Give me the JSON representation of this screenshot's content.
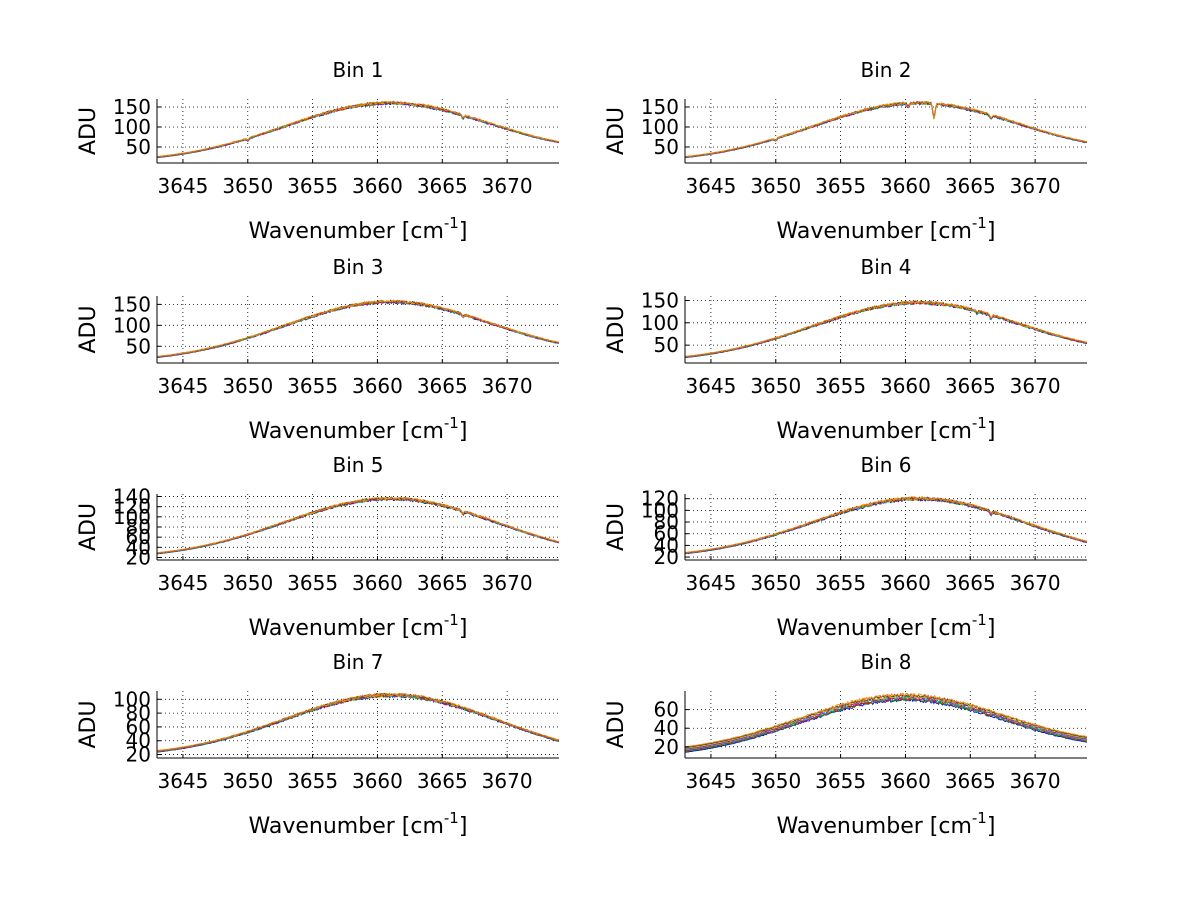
{
  "figure": {
    "background": "#ffffff"
  },
  "chart_data": [
    {
      "type": "line",
      "title": "Bin 1",
      "xlabel": "Wavenumber [cm",
      "xlabel_sup": "-1",
      "xlabel_end": "]",
      "ylabel": "ADU",
      "xlim": [
        3643,
        3674
      ],
      "ylim": [
        10,
        170
      ],
      "xticks": [
        3645,
        3650,
        3655,
        3660,
        3665,
        3670
      ],
      "yticks": [
        50,
        100,
        150
      ],
      "grid": true,
      "peak": 160,
      "start": 12,
      "end": 62,
      "center": 3661,
      "width": 11.5,
      "noise": 3,
      "spread": 1.5,
      "dips": [
        [
          3666.6,
          8
        ],
        [
          3650,
          5
        ]
      ]
    },
    {
      "type": "line",
      "title": "Bin 2",
      "xlabel": "Wavenumber [cm",
      "xlabel_sup": "-1",
      "xlabel_end": "]",
      "ylabel": "ADU",
      "xlim": [
        3643,
        3674
      ],
      "ylim": [
        10,
        170
      ],
      "xticks": [
        3645,
        3650,
        3655,
        3660,
        3665,
        3670
      ],
      "yticks": [
        50,
        100,
        150
      ],
      "grid": true,
      "peak": 160,
      "start": 12,
      "end": 62,
      "center": 3661,
      "width": 11.5,
      "noise": 3,
      "spread": 1.5,
      "dips": [
        [
          3662.2,
          35
        ],
        [
          3660.2,
          10
        ],
        [
          3666.6,
          8
        ],
        [
          3650,
          5
        ]
      ]
    },
    {
      "type": "line",
      "title": "Bin 3",
      "xlabel": "Wavenumber [cm",
      "xlabel_sup": "-1",
      "xlabel_end": "]",
      "ylabel": "ADU",
      "xlim": [
        3643,
        3674
      ],
      "ylim": [
        10,
        170
      ],
      "xticks": [
        3645,
        3650,
        3655,
        3660,
        3665,
        3670
      ],
      "yticks": [
        50,
        100,
        150
      ],
      "grid": true,
      "peak": 156,
      "start": 12,
      "end": 58,
      "center": 3661,
      "width": 11.5,
      "noise": 3,
      "spread": 1.5,
      "dips": [
        [
          3666.6,
          6
        ]
      ]
    },
    {
      "type": "line",
      "title": "Bin 4",
      "xlabel": "Wavenumber [cm",
      "xlabel_sup": "-1",
      "xlabel_end": "]",
      "ylabel": "ADU",
      "xlim": [
        3643,
        3674
      ],
      "ylim": [
        10,
        160
      ],
      "xticks": [
        3645,
        3650,
        3655,
        3660,
        3665,
        3670
      ],
      "yticks": [
        50,
        100,
        150
      ],
      "grid": true,
      "peak": 145,
      "start": 12,
      "end": 55,
      "center": 3661,
      "width": 11.5,
      "noise": 3,
      "spread": 1.5,
      "dips": [
        [
          3666.6,
          8
        ],
        [
          3665.5,
          4
        ]
      ]
    },
    {
      "type": "line",
      "title": "Bin 5",
      "xlabel": "Wavenumber [cm",
      "xlabel_sup": "-1",
      "xlabel_end": "]",
      "ylabel": "ADU",
      "xlim": [
        3643,
        3674
      ],
      "ylim": [
        15,
        145
      ],
      "xticks": [
        3645,
        3650,
        3655,
        3660,
        3665,
        3670
      ],
      "yticks": [
        20,
        40,
        60,
        80,
        100,
        120,
        140
      ],
      "yticklabels": [
        "20",
        "40",
        "60",
        "80",
        "100",
        "120",
        "140"
      ],
      "grid": true,
      "peak": 136,
      "start": 18,
      "end": 50,
      "center": 3661,
      "width": 11.5,
      "noise": 2.5,
      "spread": 1.2,
      "dips": [
        [
          3666.6,
          5
        ]
      ]
    },
    {
      "type": "line",
      "title": "Bin 6",
      "xlabel": "Wavenumber [cm",
      "xlabel_sup": "-1",
      "xlabel_end": "]",
      "ylabel": "ADU",
      "xlim": [
        3643,
        3674
      ],
      "ylim": [
        15,
        128
      ],
      "xticks": [
        3645,
        3650,
        3655,
        3660,
        3665,
        3670
      ],
      "yticks": [
        20,
        40,
        60,
        80,
        100,
        120
      ],
      "yticklabels": [
        "20",
        "40",
        "60",
        "80",
        "100",
        "120"
      ],
      "grid": true,
      "peak": 120,
      "start": 18,
      "end": 46,
      "center": 3661,
      "width": 11.5,
      "noise": 2.5,
      "spread": 1.2,
      "dips": [
        [
          3666.6,
          5
        ]
      ]
    },
    {
      "type": "line",
      "title": "Bin 7",
      "xlabel": "Wavenumber [cm",
      "xlabel_sup": "-1",
      "xlabel_end": "]",
      "ylabel": "ADU",
      "xlim": [
        3643,
        3674
      ],
      "ylim": [
        15,
        112
      ],
      "xticks": [
        3645,
        3650,
        3655,
        3660,
        3665,
        3670
      ],
      "yticks": [
        20,
        40,
        60,
        80,
        100
      ],
      "yticklabels": [
        "20",
        "40",
        "60",
        "80",
        "100"
      ],
      "grid": true,
      "peak": 106,
      "start": 17,
      "end": 40,
      "center": 3661,
      "width": 11.5,
      "noise": 2.2,
      "spread": 1.2,
      "dips": []
    },
    {
      "type": "line",
      "title": "Bin 8",
      "xlabel": "Wavenumber [cm",
      "xlabel_sup": "-1",
      "xlabel_end": "]",
      "ylabel": "ADU",
      "xlim": [
        3643,
        3674
      ],
      "ylim": [
        8,
        80
      ],
      "xticks": [
        3645,
        3650,
        3655,
        3660,
        3665,
        3670
      ],
      "yticks": [
        20,
        40,
        60
      ],
      "grid": true,
      "peak": 73,
      "start": 10,
      "end": 28,
      "center": 3660,
      "width": 11.5,
      "noise": 1.5,
      "spread": 3,
      "dips": []
    }
  ],
  "series_colors": [
    "#0000ff",
    "#00a000",
    "#ff0000",
    "#00bfbf",
    "#bf00bf",
    "#bfbf00",
    "#404040",
    "#ff8000"
  ]
}
